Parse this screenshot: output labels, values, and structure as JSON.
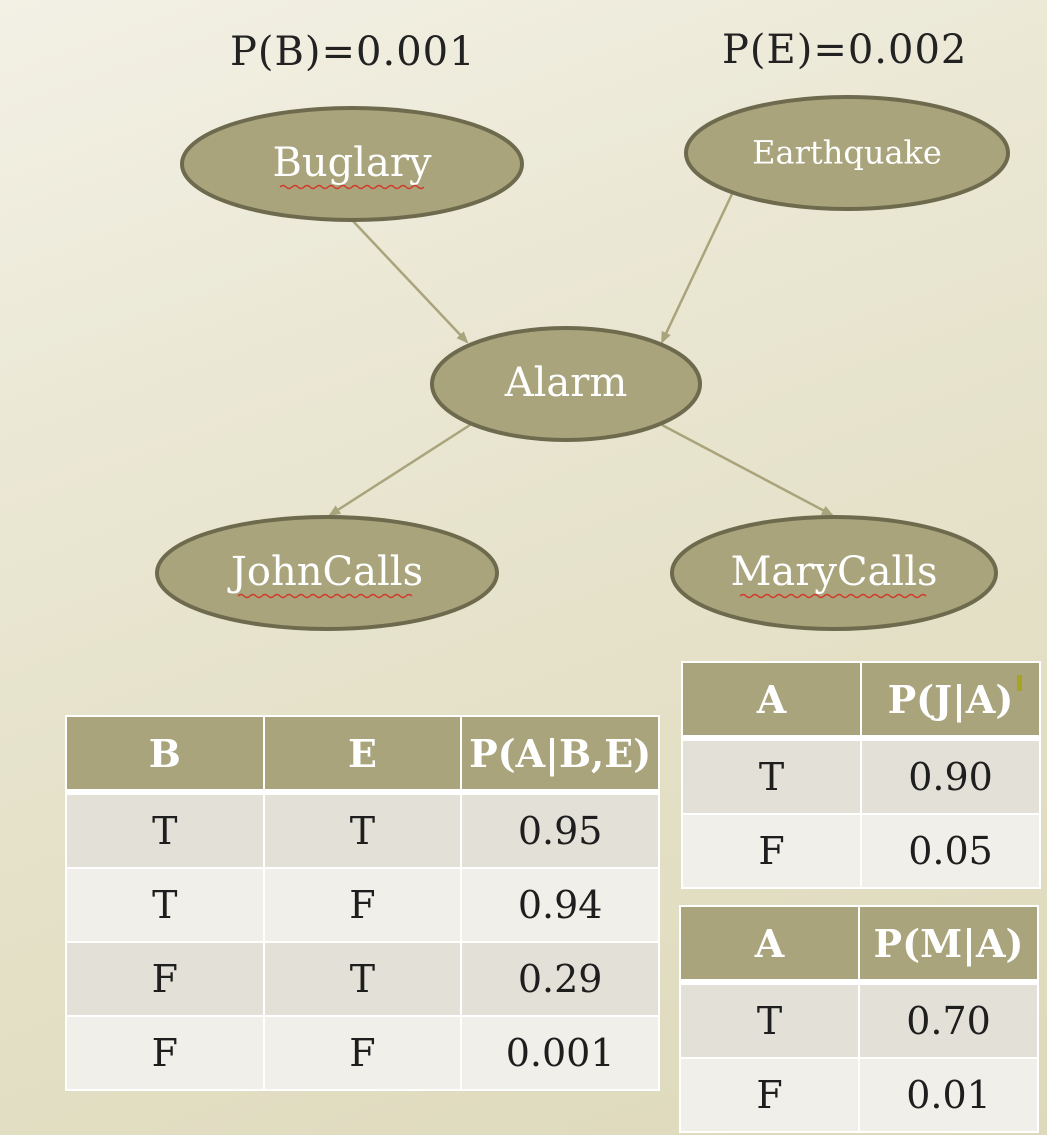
{
  "priors": {
    "burglary": "P(B)=0.001",
    "earthquake": "P(E)=0.002"
  },
  "nodes": {
    "burglary": "Buglary",
    "earthquake": "Earthquake",
    "alarm": "Alarm",
    "john": "JohnCalls",
    "mary": "MaryCalls"
  },
  "colors": {
    "node_fill": "#a9a47c",
    "node_border": "#6e6a4e",
    "edge": "#a9a47c",
    "header_fill": "#a9a47c",
    "row_odd": "#e2e0d7",
    "row_even": "#f0efe9"
  },
  "tables": {
    "alarm": {
      "headers": [
        "B",
        "E",
        "P(A|B,E)"
      ],
      "rows": [
        [
          "T",
          "T",
          "0.95"
        ],
        [
          "T",
          "F",
          "0.94"
        ],
        [
          "F",
          "T",
          "0.29"
        ],
        [
          "F",
          "F",
          "0.001"
        ]
      ]
    },
    "john": {
      "headers": [
        "A",
        "P(J|A)"
      ],
      "rows": [
        [
          "T",
          "0.90"
        ],
        [
          "F",
          "0.05"
        ]
      ]
    },
    "mary": {
      "headers": [
        "A",
        "P(M|A)"
      ],
      "rows": [
        [
          "T",
          "0.70"
        ],
        [
          "F",
          "0.01"
        ]
      ]
    }
  }
}
